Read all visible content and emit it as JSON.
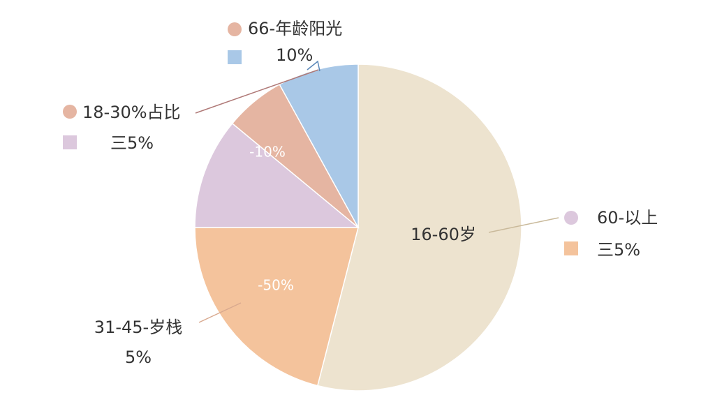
{
  "chart_data": {
    "type": "pie",
    "categories": [
      null,
      null,
      null,
      null,
      null
    ],
    "values": [
      54,
      21,
      11,
      6,
      8
    ],
    "colors": [
      "#ede3cf",
      "#f4c39c",
      "#dcc8dd",
      "#e5b5a2",
      "#a9c8e7"
    ],
    "annotations": [
      "66-年龄阳光",
      "10%",
      "18-30%占比",
      "三5%",
      "16-60岁",
      "60-以上",
      "三5%",
      "-10%",
      "-50%",
      "31-45-岁栈",
      "5%"
    ]
  }
}
